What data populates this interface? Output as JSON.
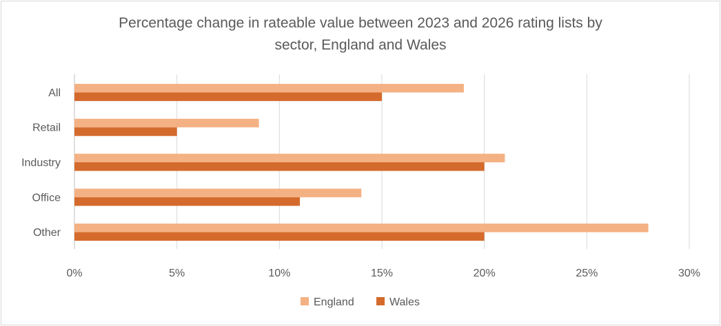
{
  "chart_data": {
    "type": "bar",
    "orientation": "horizontal",
    "title": "Percentage change in rateable value between 2023 and 2026 rating lists by sector, England and Wales",
    "title_lines": [
      "Percentage change in rateable value between 2023 and 2026 rating lists by",
      "sector, England and Wales"
    ],
    "categories": [
      "All",
      "Retail",
      "Industry",
      "Office",
      "Other"
    ],
    "series": [
      {
        "name": "England",
        "color": "#F4B183",
        "values": [
          19,
          9,
          21,
          14,
          28
        ]
      },
      {
        "name": "Wales",
        "color": "#D46A2C",
        "values": [
          15,
          5,
          20,
          11,
          20
        ]
      }
    ],
    "xlim": [
      0,
      30
    ],
    "x_ticks": [
      0,
      5,
      10,
      15,
      20,
      25,
      30
    ],
    "x_tick_labels": [
      "0%",
      "5%",
      "10%",
      "15%",
      "20%",
      "25%",
      "30%"
    ],
    "xlabel": "",
    "ylabel": "",
    "grid": "vertical",
    "legend": "bottom-center"
  }
}
